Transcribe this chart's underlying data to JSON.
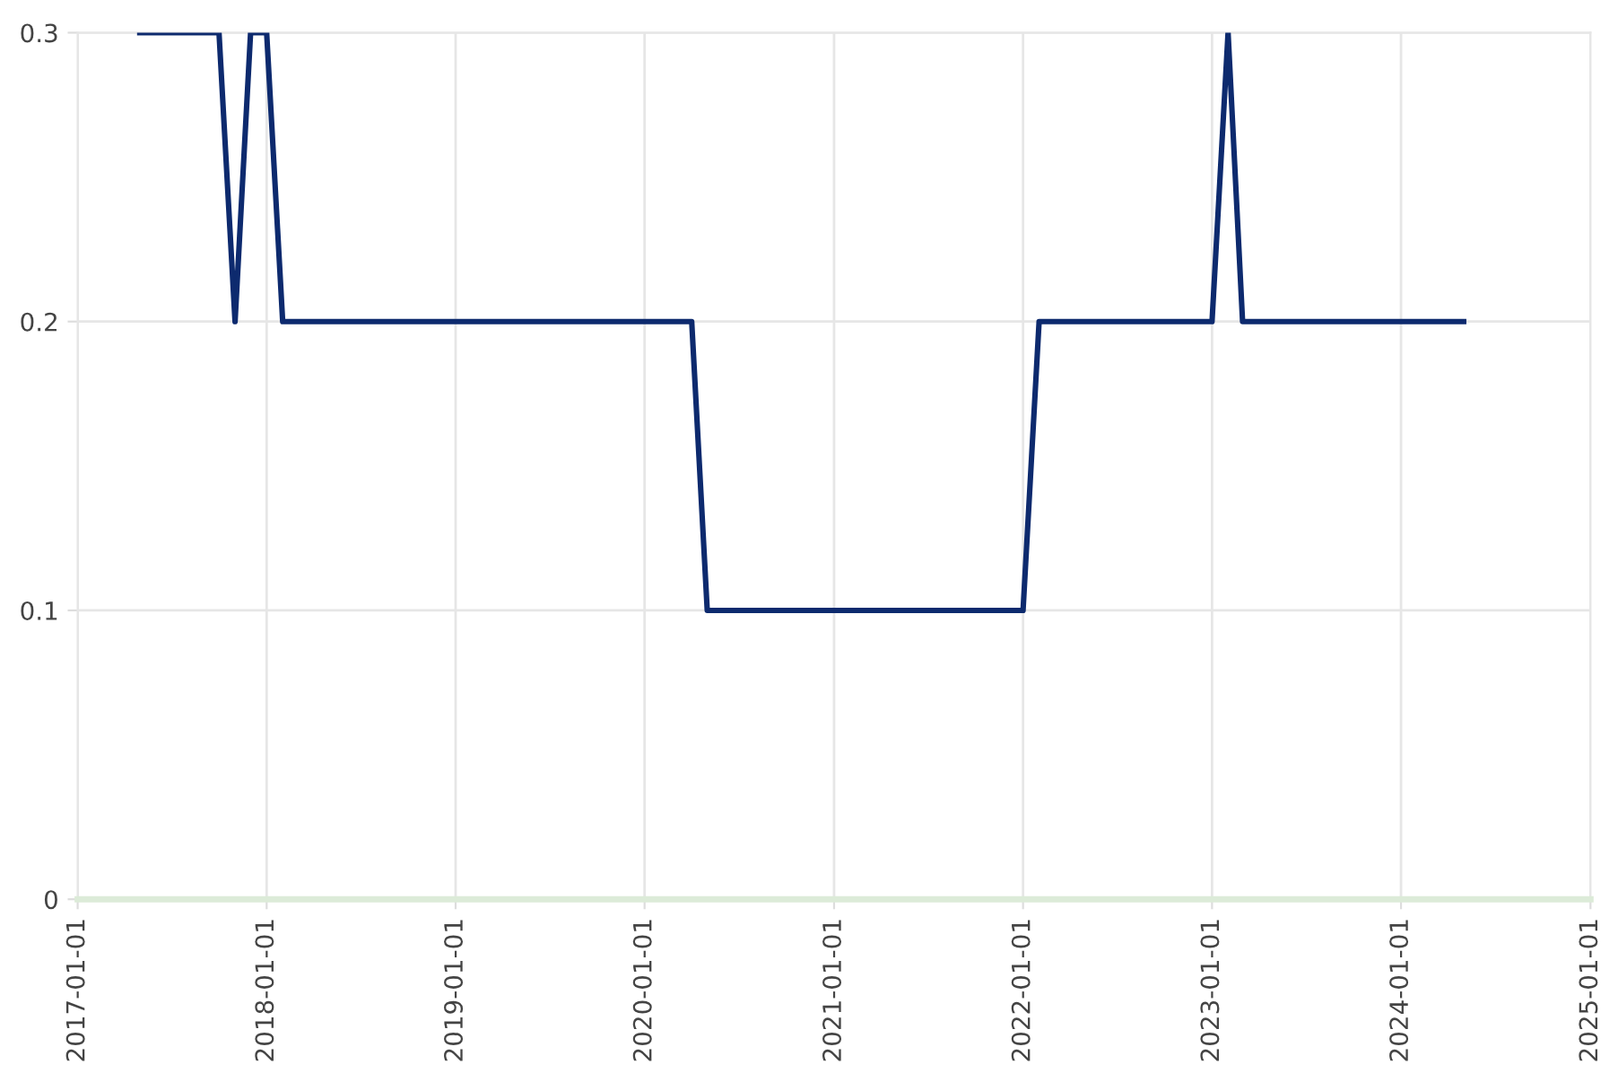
{
  "chart_data": {
    "type": "line",
    "x": [
      "2017-05-01",
      "2017-10-01",
      "2017-11-01",
      "2017-12-01",
      "2018-01-01",
      "2018-02-01",
      "2020-04-01",
      "2020-05-01",
      "2022-01-01",
      "2022-02-01",
      "2023-01-01",
      "2023-02-01",
      "2023-03-01",
      "2024-05-01"
    ],
    "series": [
      {
        "color": "#0d2a6e",
        "values": [
          0.3,
          0.3,
          0.2,
          0.3,
          0.3,
          0.2,
          0.2,
          0.1,
          0.1,
          0.2,
          0.2,
          0.3,
          0.2,
          0.2
        ]
      }
    ],
    "xlim": [
      "2017-01-01",
      "2025-01-01"
    ],
    "xticks": [
      "2017-01-01",
      "2018-01-01",
      "2019-01-01",
      "2020-01-01",
      "2021-01-01",
      "2022-01-01",
      "2023-01-01",
      "2024-01-01",
      "2025-01-01"
    ],
    "ylim": [
      0,
      0.3
    ],
    "yticks": [
      0,
      0.1,
      0.2,
      0.3
    ],
    "grid": true,
    "marker": "none",
    "line_style": "solid"
  }
}
